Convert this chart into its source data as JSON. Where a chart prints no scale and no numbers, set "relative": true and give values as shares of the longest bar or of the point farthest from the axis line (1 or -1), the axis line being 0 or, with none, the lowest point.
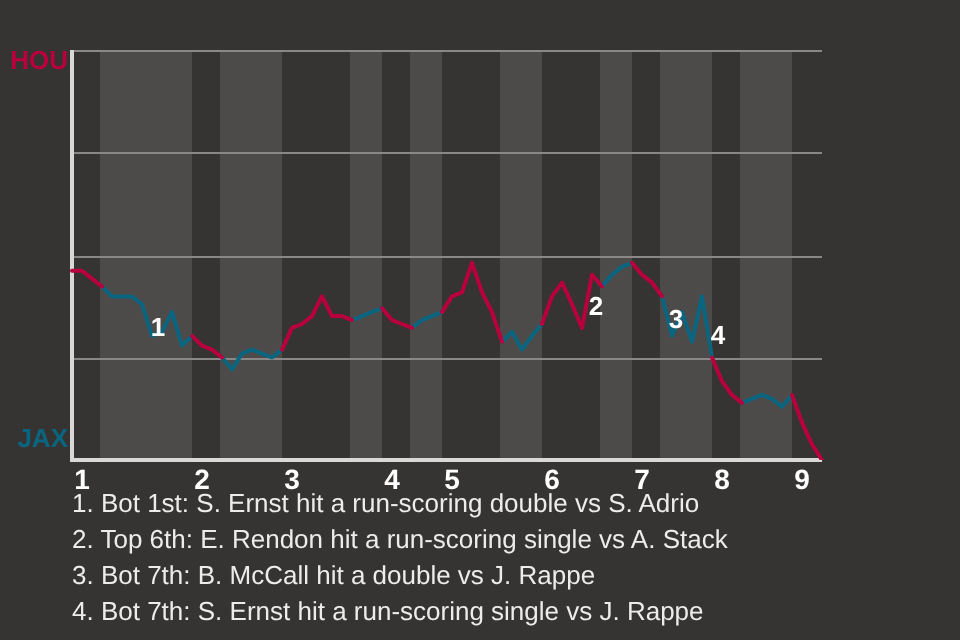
{
  "chart_data": {
    "type": "line",
    "relative": true,
    "categories": [
      null,
      "1",
      null,
      null,
      null,
      null,
      null,
      null,
      null,
      null,
      null,
      null,
      null,
      "2",
      null,
      null,
      null,
      null,
      null,
      null,
      null,
      null,
      "3",
      null,
      null,
      null,
      null,
      null,
      null,
      null,
      null,
      null,
      "4",
      null,
      null,
      null,
      null,
      null,
      "5",
      null,
      null,
      null,
      null,
      null,
      null,
      null,
      null,
      null,
      "6",
      null,
      null,
      null,
      null,
      null,
      null,
      null,
      null,
      "7",
      null,
      null,
      null,
      null,
      null,
      null,
      null,
      "8",
      null,
      null,
      null,
      null,
      null,
      null,
      null,
      "9",
      null,
      null
    ],
    "marker": "none",
    "line_style": "solid",
    "ref_lines": [
      {
        "axis": "y",
        "value": 0.52,
        "color": "#8a8886"
      },
      {
        "axis": "y",
        "value": 1.04,
        "color": "#8a8886"
      },
      {
        "axis": "y",
        "value": 1.56,
        "color": "#8a8886"
      },
      {
        "axis": "y",
        "value": 2.08,
        "color": "#8a8886"
      }
    ],
    "series": [
      {
        "name": "HOU",
        "color": "#b8003c",
        "values": [
          0.96,
          0.96,
          0.92,
          0.88,
          null,
          null,
          null,
          null,
          null,
          null,
          null,
          null,
          0.63,
          0.58,
          0.56,
          0.52,
          null,
          null,
          null,
          null,
          null,
          0.56,
          0.67,
          0.69,
          0.73,
          0.83,
          0.73,
          0.73,
          0.71,
          null,
          null,
          0.77,
          0.71,
          0.69,
          0.67,
          null,
          null,
          0.75,
          0.83,
          0.85,
          1,
          0.85,
          0.75,
          0.6,
          null,
          null,
          null,
          0.69,
          0.83,
          0.9,
          0.79,
          0.67,
          0.94,
          0.88,
          null,
          null,
          1,
          0.94,
          0.9,
          0.83,
          null,
          null,
          null,
          null,
          0.52,
          0.4,
          0.33,
          0.29,
          null,
          null,
          null,
          null,
          0.33,
          0.19,
          0.08,
          0
        ]
      },
      {
        "name": "JAX",
        "color": "#0a6680",
        "values": [
          null,
          null,
          null,
          0.88,
          0.83,
          0.83,
          0.83,
          0.79,
          0.63,
          0.65,
          0.75,
          0.58,
          0.63,
          null,
          null,
          0.52,
          0.46,
          0.54,
          0.56,
          0.54,
          0.52,
          0.56,
          null,
          null,
          null,
          null,
          null,
          null,
          0.71,
          0.73,
          0.75,
          0.77,
          null,
          null,
          0.67,
          0.71,
          0.73,
          0.75,
          null,
          null,
          null,
          null,
          null,
          0.6,
          0.65,
          0.56,
          0.63,
          0.69,
          null,
          null,
          null,
          null,
          null,
          0.88,
          0.94,
          0.98,
          1,
          null,
          null,
          0.83,
          0.63,
          0.75,
          0.6,
          0.83,
          0.52,
          null,
          null,
          0.29,
          0.31,
          0.33,
          0.31,
          0.27,
          0.33,
          null,
          null,
          null
        ]
      }
    ],
    "annotations": [
      "1",
      "2",
      "3",
      "4",
      "1. Bot 1st: S. Ernst hit a run-scoring double vs S. Adrio",
      "2. Top 6th: E. Rendon hit a run-scoring single vs A. Stack",
      "3. Bot 7th: B. McCall hit a double vs J. Rappe",
      "4. Bot 7th: S. Ernst hit a run-scoring single vs J. Rappe"
    ]
  }
}
